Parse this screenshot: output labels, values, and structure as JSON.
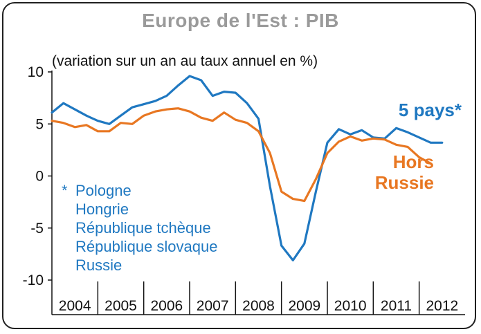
{
  "chart_data": {
    "type": "line",
    "title": "Europe de l'Est : PIB",
    "subtitle": "(variation sur un an au taux annuel en %)",
    "ylim": [
      -10,
      10
    ],
    "yticks": [
      10,
      5,
      0,
      -5,
      -10
    ],
    "ytick_labels": [
      "10",
      "5",
      "0",
      "-5",
      "-10"
    ],
    "xlim": [
      2004.0,
      2013.0
    ],
    "year_labels": [
      "2004",
      "2005",
      "2006",
      "2007",
      "2008",
      "2009",
      "2010",
      "2011",
      "2012"
    ],
    "series": [
      {
        "name": "5 pays*",
        "color": "#1f78c1",
        "x": [
          2004.0,
          2004.25,
          2004.5,
          2004.75,
          2005.0,
          2005.25,
          2005.5,
          2005.75,
          2006.0,
          2006.25,
          2006.5,
          2006.75,
          2007.0,
          2007.25,
          2007.5,
          2007.75,
          2008.0,
          2008.25,
          2008.5,
          2008.75,
          2009.0,
          2009.25,
          2009.5,
          2009.75,
          2010.0,
          2010.25,
          2010.5,
          2010.75,
          2011.0,
          2011.25,
          2011.5,
          2011.75,
          2012.0,
          2012.25,
          2012.5
        ],
        "values": [
          6.1,
          7.0,
          6.4,
          5.8,
          5.3,
          5.0,
          5.8,
          6.6,
          6.9,
          7.2,
          7.7,
          8.7,
          9.6,
          9.2,
          7.7,
          8.1,
          8.0,
          7.0,
          5.5,
          -1.0,
          -6.7,
          -8.1,
          -6.5,
          -1.5,
          3.2,
          4.5,
          4.0,
          4.4,
          3.7,
          3.6,
          4.6,
          4.2,
          3.7,
          3.2,
          3.2
        ],
        "label_lines": [
          "5 pays*"
        ]
      },
      {
        "name": "Hors Russie",
        "color": "#e87722",
        "x": [
          2004.0,
          2004.25,
          2004.5,
          2004.75,
          2005.0,
          2005.25,
          2005.5,
          2005.75,
          2006.0,
          2006.25,
          2006.5,
          2006.75,
          2007.0,
          2007.25,
          2007.5,
          2007.75,
          2008.0,
          2008.25,
          2008.5,
          2008.75,
          2009.0,
          2009.25,
          2009.5,
          2009.75,
          2010.0,
          2010.25,
          2010.5,
          2010.75,
          2011.0,
          2011.25,
          2011.5,
          2011.75,
          2012.0,
          2012.25
        ],
        "values": [
          5.3,
          5.1,
          4.7,
          4.9,
          4.3,
          4.3,
          5.1,
          5.0,
          5.8,
          6.2,
          6.4,
          6.5,
          6.2,
          5.6,
          5.3,
          6.1,
          5.4,
          5.1,
          4.3,
          2.2,
          -1.5,
          -2.2,
          -2.4,
          -0.3,
          2.2,
          3.3,
          3.8,
          3.4,
          3.6,
          3.5,
          3.0,
          2.8,
          1.8,
          1.2
        ],
        "label_lines": [
          "Hors",
          "Russie"
        ]
      }
    ],
    "annotation": {
      "marker": "*",
      "lines": [
        "Pologne",
        "Hongrie",
        "République tchèque",
        "République slovaque",
        "Russie"
      ]
    }
  }
}
